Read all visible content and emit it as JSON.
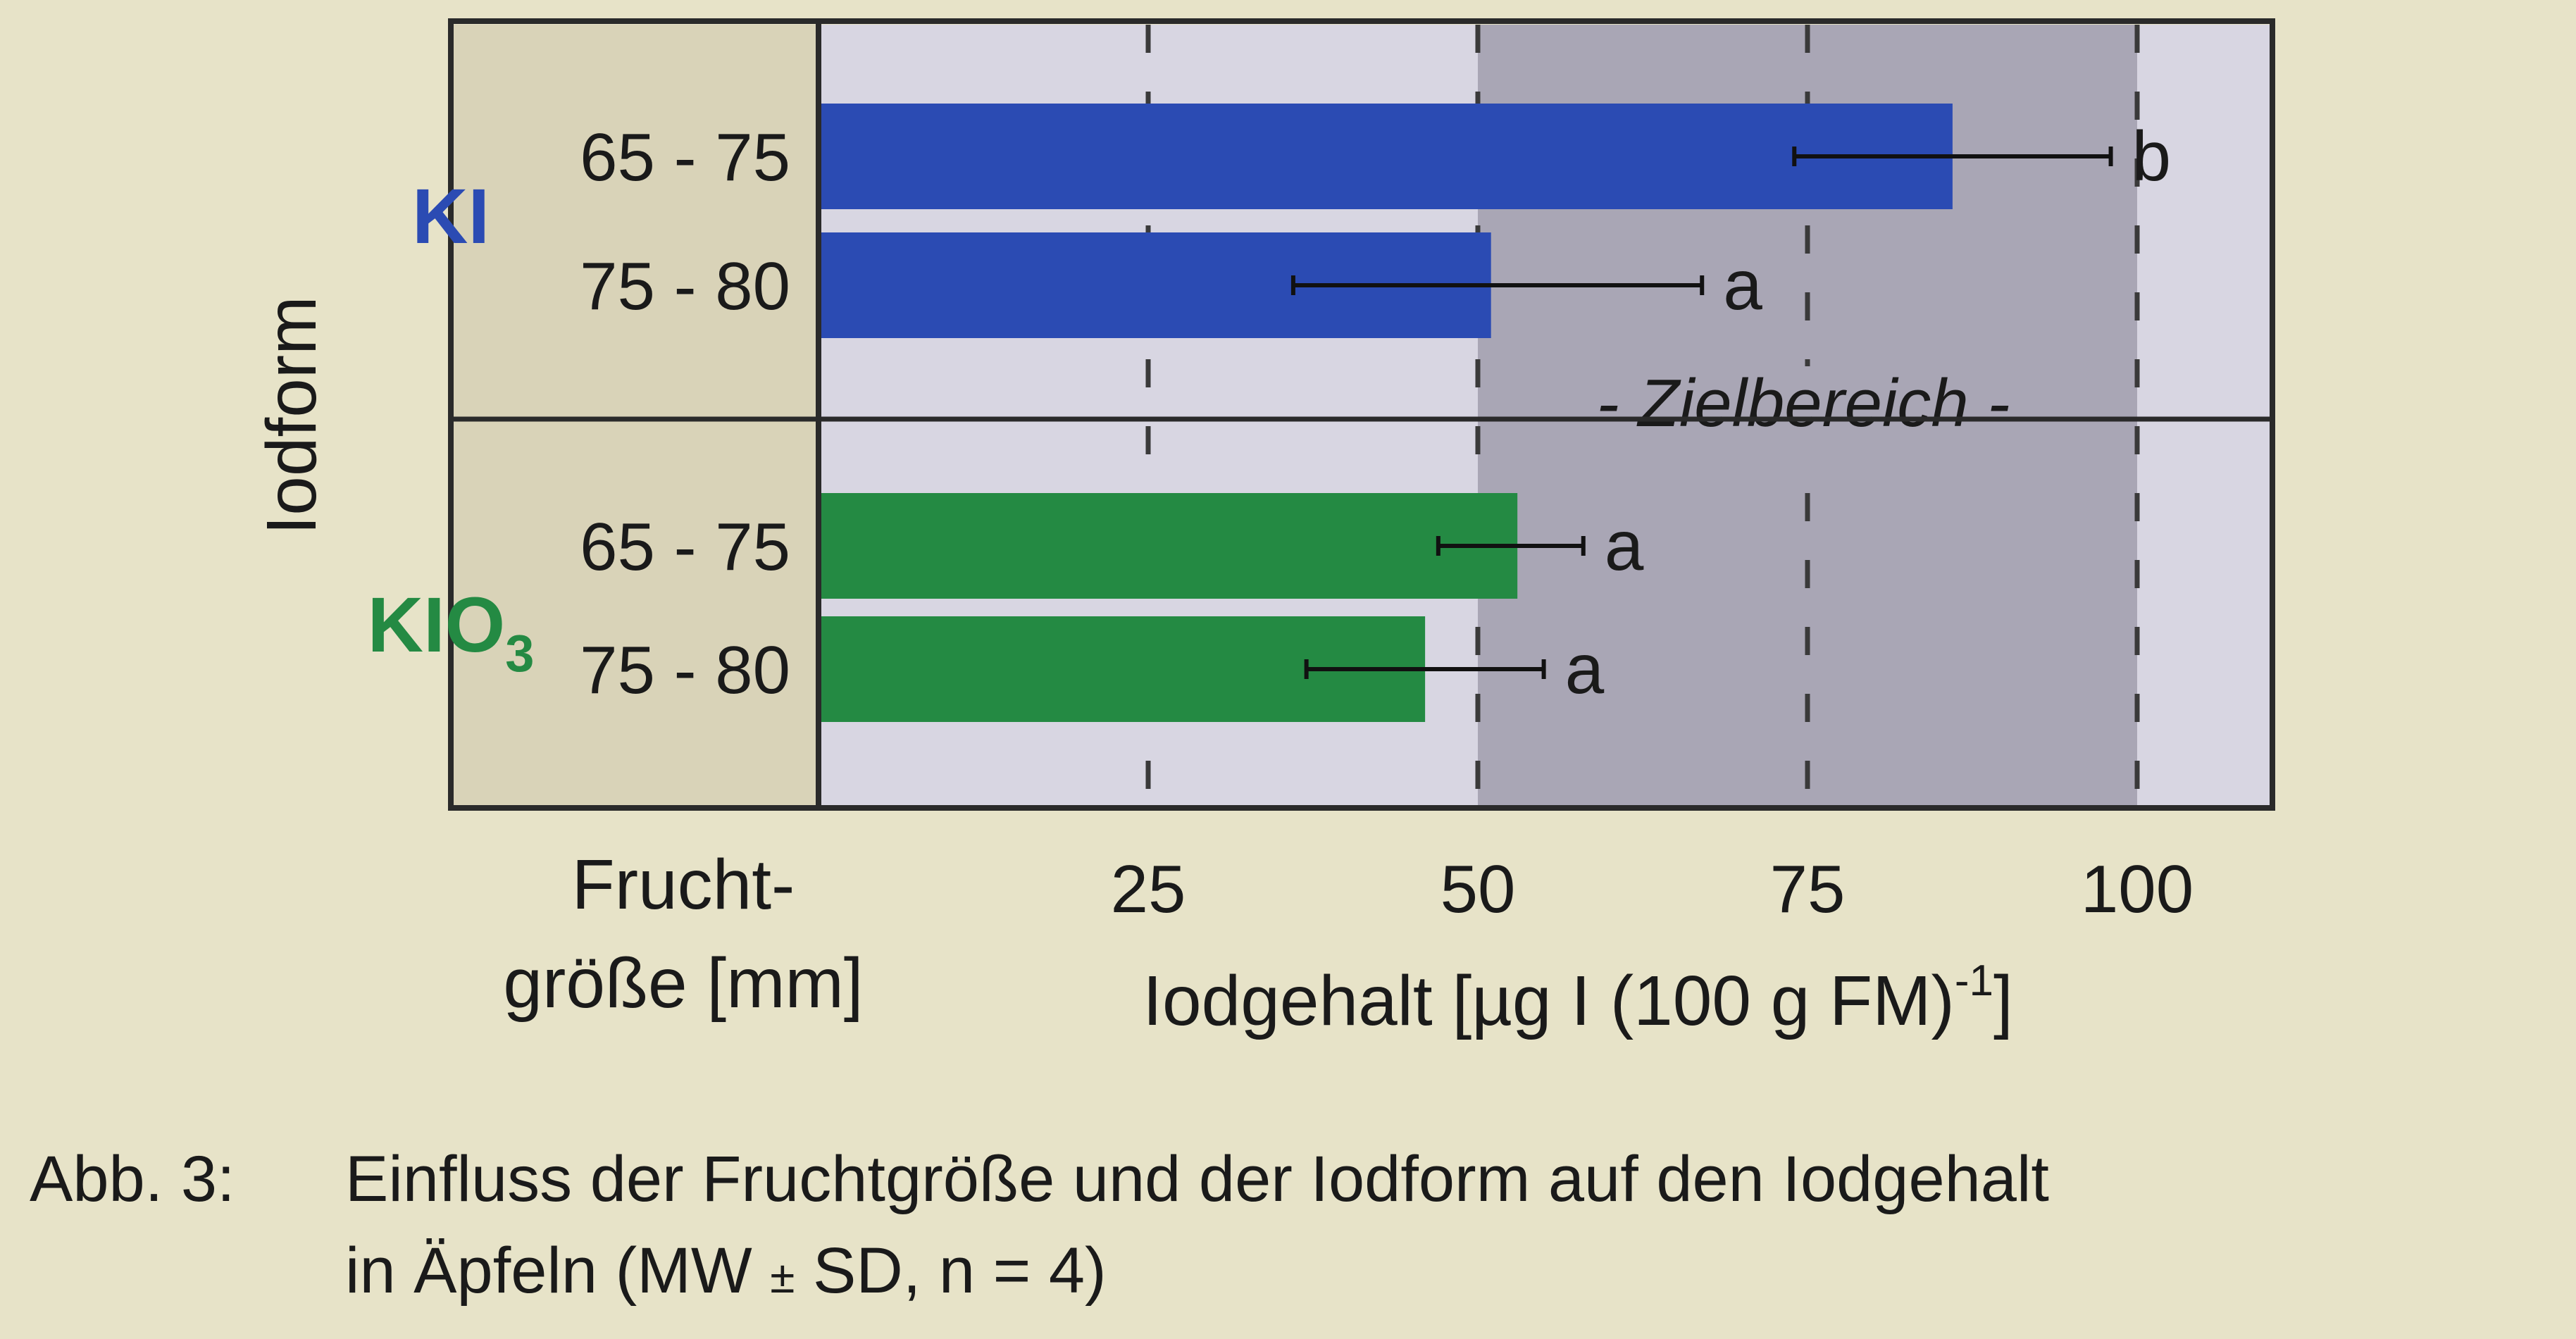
{
  "chart_data": {
    "type": "bar",
    "orientation": "horizontal",
    "xlabel_main": "Iodgehalt [µg I (100 g FM)",
    "xlabel_sup": "-1",
    "xlabel_end": "]",
    "ylabel": "Iodform",
    "category_axis_title_line1": "Frucht-",
    "category_axis_title_line2": "größe [mm]",
    "xlim": [
      0,
      110
    ],
    "xticks": [
      "25",
      "50",
      "75",
      "100"
    ],
    "xtick_values": [
      25,
      50,
      75,
      100
    ],
    "grid": "dashed vertical lines at 25, 50, 75, 100",
    "target_range": {
      "from": 50,
      "to": 100,
      "label": "- Zielbereich -"
    },
    "groups": [
      {
        "name_main": "KI",
        "name_sub": "",
        "color": "#2b4bb3",
        "bars": [
          {
            "category": "65 - 75",
            "value": 86,
            "sd_low": 74,
            "sd_high": 98,
            "letter": "b"
          },
          {
            "category": "75 - 80",
            "value": 51,
            "sd_low": 36,
            "sd_high": 67,
            "letter": "a"
          }
        ]
      },
      {
        "name_main": "KIO",
        "name_sub": "3",
        "color": "#248a43",
        "bars": [
          {
            "category": "65 - 75",
            "value": 53,
            "sd_low": 47,
            "sd_high": 58,
            "letter": "a"
          },
          {
            "category": "75 - 80",
            "value": 46,
            "sd_low": 37,
            "sd_high": 55,
            "letter": "a"
          }
        ]
      }
    ],
    "caption_label": "Abb. 3:",
    "caption_line1": "Einfluss der Fruchtgröße und der Iodform auf den Iodgehalt",
    "caption_line2_pre": "in Äpfeln (MW ",
    "caption_pm": "±",
    "caption_line2_post": " SD, n = 4)"
  },
  "colors": {
    "page_background": "#e7e3c8",
    "label_panel": "#d9d3b8",
    "plot_background": "#d8d6e2",
    "target_range_fill": "#a9a6b5",
    "frame": "#2a2a2a",
    "text": "#1a1a1a"
  }
}
